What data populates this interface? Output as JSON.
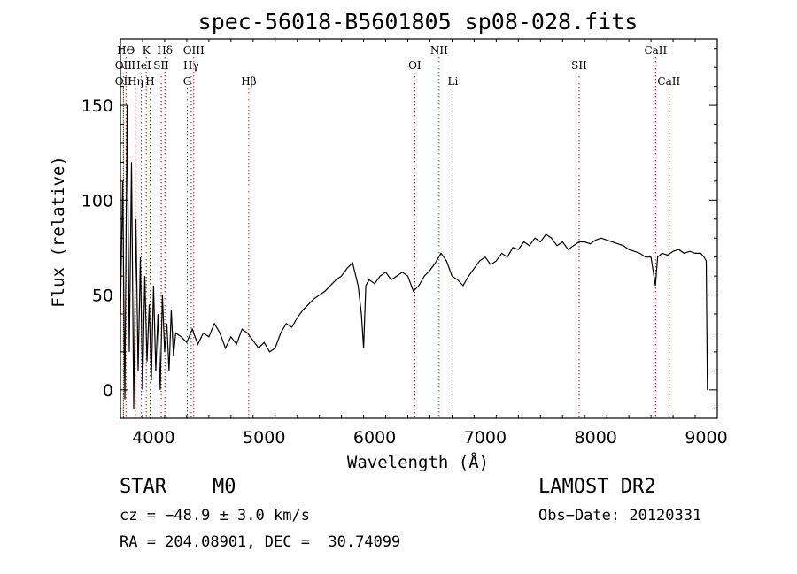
{
  "chart_data": {
    "type": "line",
    "title": "spec-56018-B5601805_sp08-028.fits",
    "xlabel": "Wavelength (Å)",
    "ylabel": "Flux (relative)",
    "xlim": [
      3700,
      9100
    ],
    "ylim": [
      -15,
      185
    ],
    "xticks": [
      4000,
      5000,
      6000,
      7000,
      8000,
      9000
    ],
    "yticks": [
      0,
      50,
      100,
      150
    ],
    "grid": false,
    "series": [
      {
        "x": [
          3700,
          3720,
          3740,
          3760,
          3780,
          3800,
          3820,
          3840,
          3860,
          3880,
          3900,
          3920,
          3940,
          3960,
          3980,
          4000,
          4020,
          4040,
          4060,
          4080,
          4100,
          4120,
          4140,
          4160,
          4180,
          4200,
          4250,
          4300,
          4350,
          4400,
          4450,
          4500,
          4550,
          4600,
          4650,
          4700,
          4750,
          4800,
          4850,
          4900,
          4950,
          5000,
          5050,
          5100,
          5150,
          5200,
          5250,
          5300,
          5350,
          5400,
          5450,
          5500,
          5550,
          5600,
          5650,
          5700,
          5750,
          5800,
          5850,
          5880,
          5900,
          5920,
          5950,
          6000,
          6050,
          6100,
          6150,
          6200,
          6250,
          6300,
          6350,
          6400,
          6450,
          6500,
          6550,
          6600,
          6650,
          6700,
          6750,
          6800,
          6850,
          6900,
          6950,
          7000,
          7050,
          7100,
          7150,
          7200,
          7250,
          7300,
          7350,
          7400,
          7450,
          7500,
          7550,
          7600,
          7650,
          7700,
          7750,
          7800,
          7850,
          7900,
          7950,
          8000,
          8050,
          8100,
          8150,
          8200,
          8250,
          8300,
          8350,
          8400,
          8450,
          8500,
          8540,
          8560,
          8600,
          8650,
          8700,
          8750,
          8800,
          8850,
          8900,
          8950,
          8980,
          9000,
          9010
        ],
        "y": [
          40,
          110,
          -5,
          150,
          20,
          120,
          -10,
          90,
          10,
          70,
          0,
          60,
          15,
          45,
          5,
          55,
          10,
          40,
          0,
          50,
          20,
          35,
          10,
          42,
          18,
          30,
          28,
          25,
          32,
          24,
          30,
          28,
          35,
          30,
          22,
          28,
          24,
          32,
          30,
          26,
          22,
          25,
          20,
          22,
          30,
          35,
          33,
          38,
          42,
          45,
          48,
          50,
          52,
          55,
          58,
          60,
          64,
          67,
          55,
          40,
          22,
          55,
          58,
          56,
          60,
          62,
          58,
          60,
          62,
          60,
          52,
          55,
          60,
          63,
          67,
          72,
          68,
          60,
          58,
          55,
          60,
          64,
          68,
          70,
          66,
          68,
          72,
          70,
          75,
          74,
          78,
          76,
          80,
          78,
          82,
          80,
          76,
          78,
          74,
          76,
          78,
          78,
          77,
          79,
          80,
          79,
          78,
          77,
          76,
          74,
          73,
          72,
          70,
          70,
          55,
          70,
          72,
          71,
          73,
          74,
          72,
          73,
          72,
          72,
          70,
          68,
          0
        ]
      }
    ],
    "line_markers": [
      {
        "label": "HΘ",
        "wl": 3750,
        "row": 1
      },
      {
        "label": "OII",
        "wl": 3727,
        "row": 2
      },
      {
        "label": "OII",
        "wl": 3727,
        "row": 3
      },
      {
        "label": "K",
        "wl": 3934,
        "row": 1
      },
      {
        "label": "HeI",
        "wl": 3889,
        "row": 2
      },
      {
        "label": "Hη",
        "wl": 3835,
        "row": 3
      },
      {
        "label": "Hδ",
        "wl": 4102,
        "row": 1
      },
      {
        "label": "SII",
        "wl": 4069,
        "row": 2
      },
      {
        "label": "H",
        "wl": 3968,
        "row": 3
      },
      {
        "label": "OIII",
        "wl": 4363,
        "row": 1
      },
      {
        "label": "Hγ",
        "wl": 4340,
        "row": 2
      },
      {
        "label": "G",
        "wl": 4305,
        "row": 3
      },
      {
        "label": "Hβ",
        "wl": 4861,
        "row": 3
      },
      {
        "label": "OI",
        "wl": 6363,
        "row": 2
      },
      {
        "label": "NII",
        "wl": 6583,
        "row": 1
      },
      {
        "label": "Li",
        "wl": 6708,
        "row": 3
      },
      {
        "label": "SII",
        "wl": 7850,
        "row": 2
      },
      {
        "label": "CaII",
        "wl": 8542,
        "row": 1
      },
      {
        "label": "CaII",
        "wl": 8662,
        "row": 3
      }
    ]
  },
  "info": {
    "class": "STAR",
    "subclass": "M0",
    "survey": "LAMOST DR2",
    "cz": "cz = −48.9 ± 3.0 km/s",
    "obs_date": "Obs−Date: 20120331",
    "coords": "RA = 204.08901, DEC =  30.74099"
  },
  "colors": {
    "line": "#000000",
    "marker": "#b22222"
  }
}
